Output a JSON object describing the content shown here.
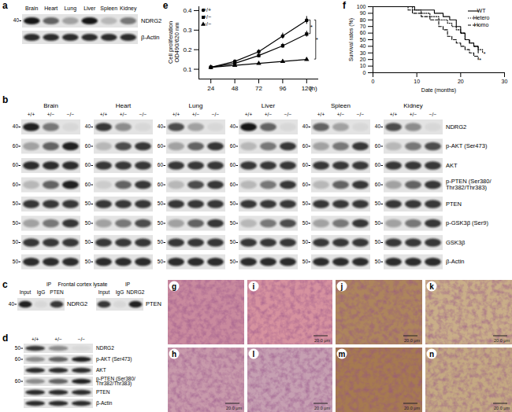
{
  "chart_data": [
    {
      "panel": "e",
      "type": "line",
      "x": [
        24,
        48,
        72,
        96,
        120
      ],
      "xlim": [
        12,
        132
      ],
      "xticks": [
        24,
        48,
        72,
        96,
        120
      ],
      "x_label": "(h)",
      "y_label": [
        "Cell proliferation",
        "OD490/620 nm"
      ],
      "ylim": [
        0.05,
        0.42
      ],
      "yticks": [
        0.1,
        0.2,
        0.3,
        0.4
      ],
      "legend": "top-left",
      "series": [
        {
          "name": "+/+",
          "color": "#000000",
          "marker": "circle",
          "values": [
            0.11,
            0.14,
            0.19,
            0.27,
            0.35
          ],
          "errors": [
            0.005,
            0.008,
            0.01,
            0.015,
            0.02
          ]
        },
        {
          "name": "+/−",
          "color": "#000000",
          "marker": "square",
          "values": [
            0.11,
            0.13,
            0.17,
            0.22,
            0.28
          ],
          "errors": [
            0.005,
            0.007,
            0.01,
            0.012,
            0.015
          ]
        },
        {
          "name": "−/−",
          "color": "#000000",
          "marker": "triangle",
          "values": [
            0.11,
            0.12,
            0.13,
            0.14,
            0.15
          ],
          "errors": [
            0.004,
            0.005,
            0.006,
            0.007,
            0.008
          ]
        }
      ],
      "annotations": [
        {
          "text": "*",
          "between": [
            "+/+",
            "+/−"
          ]
        },
        {
          "text": "*",
          "between": [
            "+/+",
            "−/−"
          ]
        }
      ]
    },
    {
      "panel": "f",
      "type": "line",
      "xlim": [
        0,
        30
      ],
      "xticks": [
        0,
        10,
        20,
        30
      ],
      "x_label": "Date (months)",
      "ylim": [
        0,
        100
      ],
      "yticks": [
        0,
        10,
        20,
        30,
        40,
        50,
        60,
        70,
        80,
        90,
        100
      ],
      "y_label": "Survival rates (%)",
      "legend": "top-right",
      "series": [
        {
          "name": "WT",
          "color": "#000000",
          "line_style": "solid",
          "x": [
            0,
            9.5,
            14,
            16,
            17.5,
            19,
            20,
            21,
            22,
            23,
            24
          ],
          "values": [
            100,
            95,
            90,
            85,
            80,
            70,
            60,
            50,
            45,
            40,
            30
          ]
        },
        {
          "name": "Hetero",
          "color": "#000000",
          "line_style": "dotted",
          "x": [
            0,
            9,
            11,
            13,
            15,
            17,
            18,
            19,
            20,
            21,
            22,
            23,
            24,
            25
          ],
          "values": [
            100,
            95,
            90,
            85,
            80,
            75,
            70,
            65,
            60,
            50,
            45,
            40,
            35,
            30
          ]
        },
        {
          "name": "Homo",
          "color": "#000000",
          "line_style": "dashed",
          "x": [
            0,
            8,
            9,
            11,
            13,
            15,
            16,
            17,
            18,
            19,
            20,
            21,
            22,
            23,
            24
          ],
          "values": [
            100,
            95,
            90,
            85,
            80,
            70,
            65,
            55,
            50,
            45,
            40,
            35,
            30,
            25,
            20
          ]
        }
      ],
      "annotations": [
        {
          "text": "*",
          "series": "Hetero"
        },
        {
          "text": "*",
          "series": "Homo"
        }
      ]
    }
  ],
  "blots": {
    "a": {
      "panel": "a",
      "lanes": [
        "Brain",
        "Heart",
        "Lung",
        "Liver",
        "Spleen",
        "Kidney"
      ],
      "rows": [
        {
          "label": "NDRG2",
          "marker": 40,
          "intensities": [
            0.95,
            0.6,
            0.3,
            0.95,
            0.2,
            0.5
          ]
        },
        {
          "label": "β-Actin",
          "marker": null,
          "intensities": [
            0.85,
            0.85,
            0.85,
            0.85,
            0.85,
            0.85
          ]
        }
      ]
    },
    "b": {
      "panel": "b",
      "lanes": [
        "+/+",
        "+/−",
        "−/−"
      ],
      "rows": [
        {
          "label": "NDRG2",
          "marker": 40
        },
        {
          "label": "p-AKT (Ser473)",
          "marker": 60
        },
        {
          "label": "AKT",
          "marker": 60
        },
        {
          "label": "p-PTEN (Ser380/\nThr382/Thr383)",
          "marker": 60
        },
        {
          "label": "PTEN",
          "marker": 50
        },
        {
          "label": "p-GSK3β (Ser9)",
          "marker": 50
        },
        {
          "label": "GSK3β",
          "marker": 50
        },
        {
          "label": "β-Actin",
          "marker": 50
        }
      ],
      "tissues": [
        {
          "name": "Brain",
          "intensities": [
            [
              0.9,
              0.5,
              0.05
            ],
            [
              0.3,
              0.6,
              0.9
            ],
            [
              0.85,
              0.85,
              0.85
            ],
            [
              0.2,
              0.6,
              0.9
            ],
            [
              0.8,
              0.8,
              0.8
            ],
            [
              0.3,
              0.5,
              0.8
            ],
            [
              0.8,
              0.8,
              0.8
            ],
            [
              0.85,
              0.85,
              0.85
            ]
          ]
        },
        {
          "name": "Heart",
          "intensities": [
            [
              0.8,
              0.4,
              0.05
            ],
            [
              0.2,
              0.7,
              0.8
            ],
            [
              0.8,
              0.8,
              0.8
            ],
            [
              0.1,
              0.6,
              0.8
            ],
            [
              0.8,
              0.8,
              0.8
            ],
            [
              0.3,
              0.5,
              0.7
            ],
            [
              0.8,
              0.8,
              0.8
            ],
            [
              0.85,
              0.85,
              0.85
            ]
          ]
        },
        {
          "name": "Lung",
          "intensities": [
            [
              0.7,
              0.3,
              0.05
            ],
            [
              0.3,
              0.6,
              0.8
            ],
            [
              0.8,
              0.8,
              0.8
            ],
            [
              0.2,
              0.7,
              0.8
            ],
            [
              0.8,
              0.8,
              0.8
            ],
            [
              0.3,
              0.6,
              0.8
            ],
            [
              0.8,
              0.8,
              0.8
            ],
            [
              0.85,
              0.85,
              0.85
            ]
          ]
        },
        {
          "name": "Liver",
          "intensities": [
            [
              0.95,
              0.6,
              0.05
            ],
            [
              0.2,
              0.5,
              0.8
            ],
            [
              0.8,
              0.8,
              0.8
            ],
            [
              0.2,
              0.5,
              0.8
            ],
            [
              0.8,
              0.8,
              0.8
            ],
            [
              0.2,
              0.5,
              0.7
            ],
            [
              0.8,
              0.8,
              0.8
            ],
            [
              0.85,
              0.85,
              0.85
            ]
          ]
        },
        {
          "name": "Spleen",
          "intensities": [
            [
              0.6,
              0.3,
              0.05
            ],
            [
              0.3,
              0.5,
              0.8
            ],
            [
              0.8,
              0.8,
              0.8
            ],
            [
              0.2,
              0.6,
              0.8
            ],
            [
              0.8,
              0.8,
              0.8
            ],
            [
              0.3,
              0.5,
              0.8
            ],
            [
              0.8,
              0.8,
              0.8
            ],
            [
              0.85,
              0.85,
              0.85
            ]
          ]
        },
        {
          "name": "Kidney",
          "intensities": [
            [
              0.7,
              0.4,
              0.05
            ],
            [
              0.2,
              0.5,
              0.7
            ],
            [
              0.8,
              0.8,
              0.8
            ],
            [
              0.3,
              0.6,
              0.8
            ],
            [
              0.8,
              0.8,
              0.8
            ],
            [
              0.3,
              0.5,
              0.8
            ],
            [
              0.8,
              0.8,
              0.8
            ],
            [
              0.85,
              0.85,
              0.85
            ]
          ]
        }
      ]
    },
    "c": {
      "panel": "c",
      "title": "Frontal cortex lysate",
      "blots": [
        {
          "ip_label": "IP",
          "lanes": [
            "Input",
            "IgG",
            "PTEN"
          ],
          "label": "NDRG2",
          "marker": 40,
          "intensities": [
            0.9,
            0.05,
            0.8
          ]
        },
        {
          "ip_label": "IP",
          "lanes": [
            "Input",
            "IgG",
            "NDRG2"
          ],
          "label": "PTEN",
          "marker": null,
          "intensities": [
            0.8,
            0.05,
            0.9
          ]
        }
      ]
    },
    "d": {
      "panel": "d",
      "lanes": [
        "+/+",
        "+/−",
        "−/−"
      ],
      "rows": [
        {
          "label": "NDRG2",
          "marker": 50,
          "intensities": [
            0.8,
            0.4,
            0.05
          ]
        },
        {
          "label": "p-AKT (Ser473)",
          "marker": 60,
          "intensities": [
            0.4,
            0.6,
            0.9
          ]
        },
        {
          "label": "AKT",
          "marker": null,
          "intensities": [
            0.85,
            0.85,
            0.85
          ]
        },
        {
          "label": "p-PTEN (Ser380/\nThr382/Thr383)",
          "marker": 60,
          "intensities": [
            0.4,
            0.6,
            0.9
          ]
        },
        {
          "label": "PTEN",
          "marker": null,
          "intensities": [
            0.85,
            0.85,
            0.85
          ]
        },
        {
          "label": "β-Actin",
          "marker": null,
          "intensities": [
            0.85,
            0.85,
            0.85
          ]
        }
      ]
    }
  },
  "histology": {
    "rows": [
      [
        {
          "panel": "g",
          "color": "#c98a9e",
          "scale_bar": null
        },
        {
          "panel": "i",
          "color": "#d6929f",
          "scale_bar": "20.0 μm"
        },
        {
          "panel": "j",
          "color": "#ad855c",
          "scale_bar": "20.0 μm"
        },
        {
          "panel": "k",
          "color": "#c9ae88",
          "scale_bar": "20.0 μm"
        }
      ],
      [
        {
          "panel": "h",
          "color": "#c89aab",
          "scale_bar": "20.0 μm"
        },
        {
          "panel": "l",
          "color": "#c6a0b2",
          "scale_bar": "20.0 μm"
        },
        {
          "panel": "m",
          "color": "#a67a50",
          "scale_bar": "20.0 μm"
        },
        {
          "panel": "n",
          "color": "#c4a982",
          "scale_bar": "20.0 μm"
        }
      ]
    ]
  }
}
